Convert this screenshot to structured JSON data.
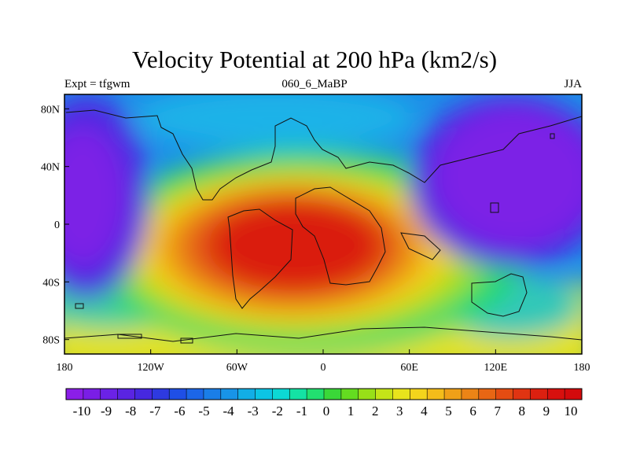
{
  "title": "Velocity Potential at 200 hPa (km2/s)",
  "subtitle_left": "Expt = tfgwm",
  "subtitle_center": "060_6_MaBP",
  "subtitle_right": "JJA",
  "x_ticks": [
    "180",
    "120W",
    "60W",
    "0",
    "60E",
    "120E",
    "180"
  ],
  "y_ticks": [
    "80N",
    "40N",
    "0",
    "40S",
    "80S"
  ],
  "colorbar": {
    "labels": [
      "-10",
      "-9",
      "-8",
      "-7",
      "-6",
      "-5",
      "-4",
      "-3",
      "-2",
      "-1",
      "0",
      "1",
      "2",
      "3",
      "4",
      "5",
      "6",
      "7",
      "8",
      "9",
      "10"
    ],
    "colors": [
      "#8b1ee8",
      "#7a1ee6",
      "#6b22e6",
      "#5a24e2",
      "#4628e0",
      "#2e3ae0",
      "#1f4fe6",
      "#1c66e8",
      "#1a7ee8",
      "#1894e8",
      "#12aee6",
      "#0cc4e4",
      "#0cd8d4",
      "#14e2a4",
      "#22e070",
      "#3ad838",
      "#64dc20",
      "#98e018",
      "#c4e418",
      "#e8e41c",
      "#f4d41c",
      "#f4bc1a",
      "#f0a018",
      "#ec8416",
      "#e86614",
      "#e44c12",
      "#e03412",
      "#dc2010",
      "#d8100e",
      "#d40a0c"
    ],
    "min": -10,
    "max": 10
  },
  "map": {
    "lon_range": [
      -180,
      180
    ],
    "lat_range": [
      -90,
      90
    ]
  }
}
